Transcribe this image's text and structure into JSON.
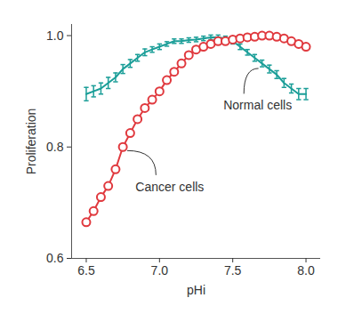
{
  "chart_data": {
    "type": "line",
    "x_label": "pHi",
    "y_label": "Proliferation",
    "x": [
      6.5,
      6.55,
      6.6,
      6.65,
      6.7,
      6.75,
      6.8,
      6.85,
      6.9,
      6.95,
      7.0,
      7.05,
      7.1,
      7.15,
      7.2,
      7.25,
      7.3,
      7.35,
      7.4,
      7.45,
      7.5,
      7.55,
      7.6,
      7.65,
      7.7,
      7.75,
      7.8,
      7.85,
      7.9,
      7.95,
      8.0
    ],
    "xlim": [
      6.4,
      8.1
    ],
    "xticks": [
      6.5,
      {
        "value": 7,
        "label": "7.0"
      },
      7.5,
      {
        "value": 8,
        "label": "8.0"
      }
    ],
    "ylim": [
      0.6,
      1.02
    ],
    "yticks": [
      0.6,
      0.8,
      {
        "value": 1,
        "label": "1.0"
      }
    ],
    "series": [
      {
        "name": "Normal cells",
        "color": "#1b9e98",
        "marker": "none",
        "values": [
          0.895,
          0.9,
          0.905,
          0.915,
          0.925,
          0.94,
          0.95,
          0.96,
          0.97,
          0.975,
          0.98,
          0.985,
          0.99,
          0.99,
          0.992,
          0.993,
          0.995,
          0.997,
          0.997,
          0.995,
          0.99,
          0.98,
          0.97,
          0.96,
          0.95,
          0.94,
          0.93,
          0.915,
          0.905,
          0.895,
          0.895
        ],
        "errors": [
          0.012,
          0.01,
          0.01,
          0.01,
          0.008,
          0.008,
          0.007,
          0.006,
          0.006,
          0.005,
          0.005,
          0.004,
          0.004,
          0.004,
          0.004,
          0.004,
          0.004,
          0.004,
          0.004,
          0.004,
          0.005,
          0.005,
          0.005,
          0.006,
          0.006,
          0.007,
          0.007,
          0.008,
          0.008,
          0.01,
          0.01
        ]
      },
      {
        "name": "Cancer cells",
        "color": "#e0393e",
        "marker": "circle",
        "values": [
          0.665,
          0.685,
          0.71,
          0.73,
          0.76,
          0.8,
          0.825,
          0.85,
          0.87,
          0.885,
          0.9,
          0.92,
          0.935,
          0.95,
          0.965,
          0.975,
          0.98,
          0.985,
          0.99,
          0.99,
          0.993,
          0.995,
          0.997,
          0.998,
          1.0,
          1.0,
          0.998,
          0.995,
          0.99,
          0.985,
          0.98
        ]
      }
    ],
    "annotations": [
      {
        "text": "Normal cells",
        "x": 7.67,
        "y": 0.874
      },
      {
        "text": "Cancer cells",
        "x": 7.07,
        "y": 0.728
      }
    ]
  }
}
